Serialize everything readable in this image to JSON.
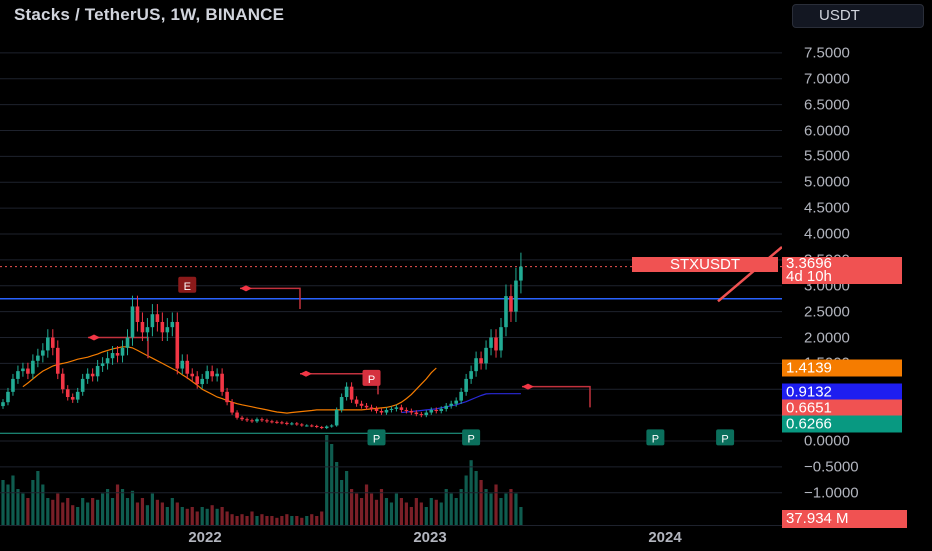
{
  "chart": {
    "title": "Stacks / TetherUS, 1W, BINANCE",
    "currency": "USDT",
    "symbol_tag": "STXUSDT",
    "last_price": "3.3696",
    "countdown": "4d 10h",
    "volume_label": "37.934 M"
  },
  "price_axis": {
    "ticks": [
      "7.5000",
      "7.0000",
      "6.5000",
      "6.0000",
      "5.5000",
      "5.0000",
      "4.5000",
      "4.0000",
      "3.5000",
      "3.0000",
      "2.5000",
      "2.0000",
      "1.5000",
      "1.0000",
      "0.5000",
      "0.0000",
      "−0.5000",
      "−1.0000"
    ],
    "badges": [
      {
        "label": "1.4139",
        "color": "#f57c00",
        "value": 1.4139
      },
      {
        "label": "0.9132",
        "color": "#1e1ef0",
        "value": 0.9132
      },
      {
        "label": "0.6651",
        "color": "#f05252",
        "value": 0.6651
      },
      {
        "label": "0.6266",
        "color": "#089981",
        "value": 0.6266
      }
    ]
  },
  "time_axis": {
    "labels": [
      "2022",
      "2023",
      "2024"
    ]
  },
  "colors": {
    "up": "#22ab94",
    "down": "#f23645",
    "ma_slow": "#f57c00",
    "ma_fast": "#2a2ad8",
    "hline": "#2962ff",
    "grid": "#1e222d"
  },
  "chart_data": {
    "type": "candlestick",
    "title": "Stacks / TetherUS, 1W, BINANCE",
    "ylim": [
      -1.25,
      7.9
    ],
    "y_ticks": [
      7.5,
      7,
      6.5,
      6,
      5.5,
      5,
      4.5,
      4,
      3.5,
      3,
      2.5,
      2,
      1.5,
      1,
      0.5,
      0,
      -0.5,
      -1
    ],
    "x_labels": [
      {
        "label": "2022",
        "week": 15
      },
      {
        "label": "2023",
        "week": 67
      },
      {
        "label": "2024",
        "week": 119
      }
    ],
    "horizontal_line": 2.75,
    "close_series": [
      0.75,
      0.95,
      1.2,
      1.35,
      1.4,
      1.3,
      1.55,
      1.65,
      1.75,
      2.0,
      1.8,
      1.3,
      1.0,
      0.85,
      0.8,
      0.95,
      1.2,
      1.3,
      1.25,
      1.45,
      1.5,
      1.6,
      1.7,
      1.65,
      1.8,
      2.0,
      2.6,
      2.3,
      2.1,
      2.2,
      2.45,
      2.3,
      2.1,
      2.2,
      2.3,
      1.4,
      1.55,
      1.3,
      1.25,
      1.1,
      1.2,
      1.35,
      1.25,
      1.3,
      0.95,
      0.75,
      0.55,
      0.45,
      0.42,
      0.4,
      0.38,
      0.42,
      0.4,
      0.38,
      0.37,
      0.36,
      0.35,
      0.33,
      0.34,
      0.32,
      0.3,
      0.3,
      0.29,
      0.27,
      0.25,
      0.28,
      0.3,
      0.6,
      0.85,
      1.05,
      0.8,
      0.72,
      0.68,
      0.65,
      0.62,
      0.58,
      0.55,
      0.6,
      0.62,
      0.65,
      0.6,
      0.58,
      0.55,
      0.52,
      0.5,
      0.55,
      0.6,
      0.58,
      0.62,
      0.68,
      0.72,
      0.78,
      0.95,
      1.2,
      1.35,
      1.6,
      1.5,
      1.8,
      2.0,
      1.75,
      2.2,
      2.8,
      2.5,
      3.1,
      3.37
    ],
    "volume_series": [
      0.5,
      0.45,
      0.55,
      0.4,
      0.35,
      0.3,
      0.5,
      0.6,
      0.45,
      0.3,
      0.28,
      0.35,
      0.25,
      0.3,
      0.22,
      0.2,
      0.3,
      0.25,
      0.3,
      0.28,
      0.35,
      0.4,
      0.3,
      0.45,
      0.4,
      0.3,
      0.38,
      0.25,
      0.3,
      0.22,
      0.35,
      0.28,
      0.25,
      0.2,
      0.3,
      0.25,
      0.2,
      0.18,
      0.2,
      0.15,
      0.2,
      0.18,
      0.22,
      0.18,
      0.2,
      0.15,
      0.12,
      0.1,
      0.12,
      0.1,
      0.15,
      0.1,
      0.12,
      0.1,
      0.1,
      0.08,
      0.1,
      0.12,
      0.1,
      0.1,
      0.08,
      0.1,
      0.12,
      0.1,
      0.15,
      1.0,
      0.9,
      0.7,
      0.5,
      0.6,
      0.4,
      0.35,
      0.3,
      0.45,
      0.35,
      0.28,
      0.4,
      0.3,
      0.25,
      0.35,
      0.3,
      0.25,
      0.2,
      0.3,
      0.25,
      0.2,
      0.3,
      0.28,
      0.25,
      0.4,
      0.35,
      0.3,
      0.4,
      0.55,
      0.72,
      0.6,
      0.5,
      0.4,
      0.35,
      0.45,
      0.3,
      0.35,
      0.4,
      0.35,
      0.2
    ],
    "ma_slow": {
      "start": 4,
      "values": [
        1.05,
        1.12,
        1.2,
        1.28,
        1.35,
        1.4,
        1.45,
        1.48,
        1.5,
        1.52,
        1.55,
        1.58,
        1.6,
        1.62,
        1.65,
        1.68,
        1.72,
        1.75,
        1.78,
        1.8,
        1.82,
        1.82,
        1.8,
        1.75,
        1.7,
        1.65,
        1.6,
        1.55,
        1.5,
        1.45,
        1.4,
        1.35,
        1.28,
        1.22,
        1.15,
        1.08,
        1.0,
        0.95,
        0.9,
        0.85,
        0.82,
        0.78,
        0.75,
        0.72,
        0.7,
        0.68,
        0.66,
        0.64,
        0.62,
        0.6,
        0.58,
        0.56,
        0.55,
        0.54,
        0.55,
        0.56,
        0.57,
        0.58,
        0.59,
        0.6,
        0.6,
        0.6,
        0.6,
        0.6,
        0.6,
        0.6,
        0.6,
        0.6,
        0.6,
        0.61,
        0.62,
        0.63,
        0.64,
        0.65,
        0.67,
        0.7,
        0.75,
        0.82,
        0.9,
        1.0,
        1.1,
        1.2,
        1.32,
        1.41
      ]
    },
    "ma_fast": {
      "start": 80,
      "values": [
        0.55,
        0.56,
        0.57,
        0.58,
        0.59,
        0.6,
        0.61,
        0.62,
        0.64,
        0.66,
        0.68,
        0.7,
        0.73,
        0.76,
        0.8,
        0.84,
        0.88,
        0.91,
        0.9132,
        0.9132,
        0.9132,
        0.9132,
        0.9132,
        0.9132,
        0.9132
      ]
    },
    "markers": [
      {
        "type": "label",
        "text": "E",
        "week": 37,
        "value": 3.0,
        "color": "#8b1a1a"
      },
      {
        "type": "label",
        "text": "P",
        "week": 74,
        "value": 1.2,
        "color": "#d5313f"
      },
      {
        "type": "label",
        "text": "P",
        "week": 75,
        "value": 0.05,
        "color": "#0b6f5c"
      },
      {
        "type": "label",
        "text": "P",
        "week": 94,
        "value": 0.05,
        "color": "#0b6f5c"
      },
      {
        "type": "label",
        "text": "P",
        "week": 131,
        "value": 0.05,
        "color": "#0b6f5c"
      },
      {
        "type": "label",
        "text": "P",
        "week": 145,
        "value": 0.05,
        "color": "#0b6f5c"
      }
    ]
  }
}
